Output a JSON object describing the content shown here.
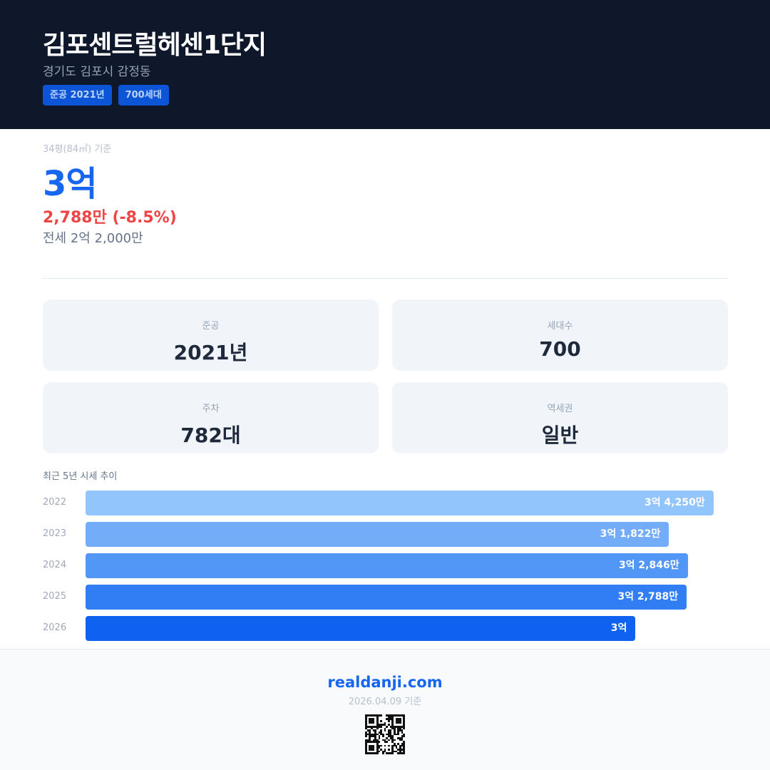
{
  "header": {
    "title": "김포센트럴헤센1단지",
    "address": "경기도 김포시 감정동",
    "badges": [
      "준공 2021년",
      "700세대"
    ]
  },
  "price": {
    "basis": "34평(84㎡) 기준",
    "main": "3억",
    "change": "2,788만 (-8.5%)",
    "jeonse": "전세 2억 2,000만"
  },
  "cards": [
    {
      "label": "준공",
      "value": "2021년"
    },
    {
      "label": "세대수",
      "value": "700"
    },
    {
      "label": "주차",
      "value": "782대"
    },
    {
      "label": "역세권",
      "value": "일반"
    }
  ],
  "chart_data": {
    "type": "bar",
    "title": "최근 5년 시세 추이",
    "orientation": "horizontal",
    "unit": "만원",
    "categories": [
      "2022",
      "2023",
      "2024",
      "2025",
      "2026"
    ],
    "values": [
      34250,
      31822,
      32846,
      32788,
      30000
    ],
    "labels": [
      "3억 4,250만",
      "3억 1,822만",
      "3억 2,846만",
      "3억 2,788만",
      "3억"
    ],
    "colors": [
      "#93c5fd",
      "#73adf9",
      "#5296f6",
      "#317ef4",
      "#0f62f0"
    ],
    "xlim": [
      0,
      35000
    ]
  },
  "footer": {
    "site": "realdanji.com",
    "date": "2026.04.09 기준",
    "qr_icon": "qr-code-icon"
  }
}
